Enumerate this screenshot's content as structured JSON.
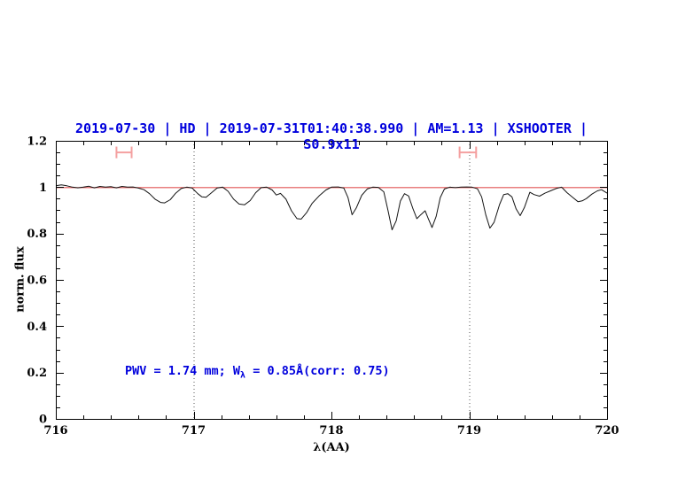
{
  "title": "2019-07-30 | HD | 2019-07-31T01:40:38.990 | AM=1.13 | XSHOOTER | S0.9x11",
  "annotation": {
    "prefix": "PWV  =  1.74  mm; W",
    "sub": "λ",
    "suffix": "  =  0.85Å(corr: 0.75)"
  },
  "colors": {
    "title_blue": "#0000dd",
    "annotation_blue": "#0000dd",
    "continuum_red": "#e05555",
    "marker_salmon": "#f4a0a0",
    "spectrum_black": "#141414",
    "dotted_gray": "#555555",
    "axis_black": "#000000"
  },
  "chart_data": {
    "type": "line",
    "title": "2019-07-30 | HD | 2019-07-31T01:40:38.990 | AM=1.13 | XSHOOTER | S0.9x11",
    "xlabel": "λ(AA)",
    "ylabel": "norm. flux",
    "xlim": [
      716,
      720
    ],
    "ylim": [
      0,
      1.2
    ],
    "grid": "off",
    "legend": "none",
    "x_major_ticks": [
      716,
      717,
      718,
      719,
      720
    ],
    "x_tick_labels": [
      "716",
      "717",
      "718",
      "719",
      "720"
    ],
    "x_minor_step": 0.2,
    "y_major_ticks": [
      0,
      0.2,
      0.4,
      0.6,
      0.8,
      1,
      1.2
    ],
    "y_tick_labels": [
      "0",
      "0.2",
      "0.4",
      "0.6",
      "0.8",
      "1",
      "1.2"
    ],
    "y_minor_step": 0.05,
    "dotted_vlines": [
      717,
      719
    ],
    "continuum_level": 1.0,
    "telluric_markers": [
      {
        "x1": 716.44,
        "x2": 716.55,
        "y": 1.15,
        "cap": 0.025
      },
      {
        "x1": 718.93,
        "x2": 719.05,
        "y": 1.15,
        "cap": 0.025
      }
    ],
    "series": [
      {
        "name": "normalized-spectrum",
        "points": [
          [
            716.0,
            1.006
          ],
          [
            716.04,
            1.01
          ],
          [
            716.08,
            1.006
          ],
          [
            716.12,
            1.0
          ],
          [
            716.16,
            0.997
          ],
          [
            716.2,
            1.0
          ],
          [
            716.24,
            1.004
          ],
          [
            716.28,
            0.997
          ],
          [
            716.32,
            1.003
          ],
          [
            716.36,
            1.0
          ],
          [
            716.4,
            1.002
          ],
          [
            716.44,
            0.997
          ],
          [
            716.48,
            1.003
          ],
          [
            716.52,
            1.0
          ],
          [
            716.56,
            1.001
          ],
          [
            716.6,
            0.996
          ],
          [
            716.64,
            0.989
          ],
          [
            716.68,
            0.972
          ],
          [
            716.72,
            0.948
          ],
          [
            716.76,
            0.934
          ],
          [
            716.79,
            0.932
          ],
          [
            716.83,
            0.946
          ],
          [
            716.87,
            0.974
          ],
          [
            716.91,
            0.994
          ],
          [
            716.95,
            1.0
          ],
          [
            716.99,
            0.996
          ],
          [
            717.03,
            0.972
          ],
          [
            717.06,
            0.958
          ],
          [
            717.09,
            0.956
          ],
          [
            717.13,
            0.976
          ],
          [
            717.17,
            0.996
          ],
          [
            717.21,
            1.0
          ],
          [
            717.25,
            0.982
          ],
          [
            717.29,
            0.948
          ],
          [
            717.33,
            0.927
          ],
          [
            717.37,
            0.924
          ],
          [
            717.41,
            0.942
          ],
          [
            717.45,
            0.976
          ],
          [
            717.49,
            0.998
          ],
          [
            717.53,
            1.0
          ],
          [
            717.57,
            0.988
          ],
          [
            717.6,
            0.966
          ],
          [
            717.63,
            0.973
          ],
          [
            717.67,
            0.948
          ],
          [
            717.71,
            0.898
          ],
          [
            717.75,
            0.864
          ],
          [
            717.78,
            0.862
          ],
          [
            717.82,
            0.89
          ],
          [
            717.86,
            0.93
          ],
          [
            717.91,
            0.962
          ],
          [
            717.96,
            0.988
          ],
          [
            718.0,
            1.0
          ],
          [
            718.05,
            1.001
          ],
          [
            718.09,
            0.996
          ],
          [
            718.12,
            0.955
          ],
          [
            718.15,
            0.881
          ],
          [
            718.18,
            0.91
          ],
          [
            718.22,
            0.965
          ],
          [
            718.26,
            0.992
          ],
          [
            718.3,
            1.0
          ],
          [
            718.34,
            0.999
          ],
          [
            718.38,
            0.98
          ],
          [
            718.41,
            0.9
          ],
          [
            718.44,
            0.816
          ],
          [
            718.47,
            0.855
          ],
          [
            718.5,
            0.94
          ],
          [
            718.53,
            0.972
          ],
          [
            718.56,
            0.962
          ],
          [
            718.59,
            0.91
          ],
          [
            718.62,
            0.864
          ],
          [
            718.65,
            0.882
          ],
          [
            718.68,
            0.898
          ],
          [
            718.7,
            0.868
          ],
          [
            718.73,
            0.826
          ],
          [
            718.76,
            0.874
          ],
          [
            718.79,
            0.955
          ],
          [
            718.82,
            0.992
          ],
          [
            718.86,
            1.0
          ],
          [
            718.9,
            0.998
          ],
          [
            718.94,
            1.0
          ],
          [
            718.98,
            1.001
          ],
          [
            719.02,
            1.0
          ],
          [
            719.06,
            0.993
          ],
          [
            719.09,
            0.958
          ],
          [
            719.12,
            0.88
          ],
          [
            719.15,
            0.823
          ],
          [
            719.18,
            0.848
          ],
          [
            719.22,
            0.925
          ],
          [
            719.25,
            0.968
          ],
          [
            719.28,
            0.972
          ],
          [
            719.31,
            0.958
          ],
          [
            719.34,
            0.906
          ],
          [
            719.37,
            0.877
          ],
          [
            719.4,
            0.912
          ],
          [
            719.44,
            0.978
          ],
          [
            719.47,
            0.968
          ],
          [
            719.51,
            0.961
          ],
          [
            719.55,
            0.974
          ],
          [
            719.59,
            0.984
          ],
          [
            719.63,
            0.994
          ],
          [
            719.67,
            1.0
          ],
          [
            719.71,
            0.976
          ],
          [
            719.75,
            0.956
          ],
          [
            719.79,
            0.937
          ],
          [
            719.82,
            0.941
          ],
          [
            719.85,
            0.951
          ],
          [
            719.89,
            0.97
          ],
          [
            719.93,
            0.984
          ],
          [
            719.96,
            0.989
          ],
          [
            720.0,
            0.974
          ]
        ]
      }
    ]
  }
}
